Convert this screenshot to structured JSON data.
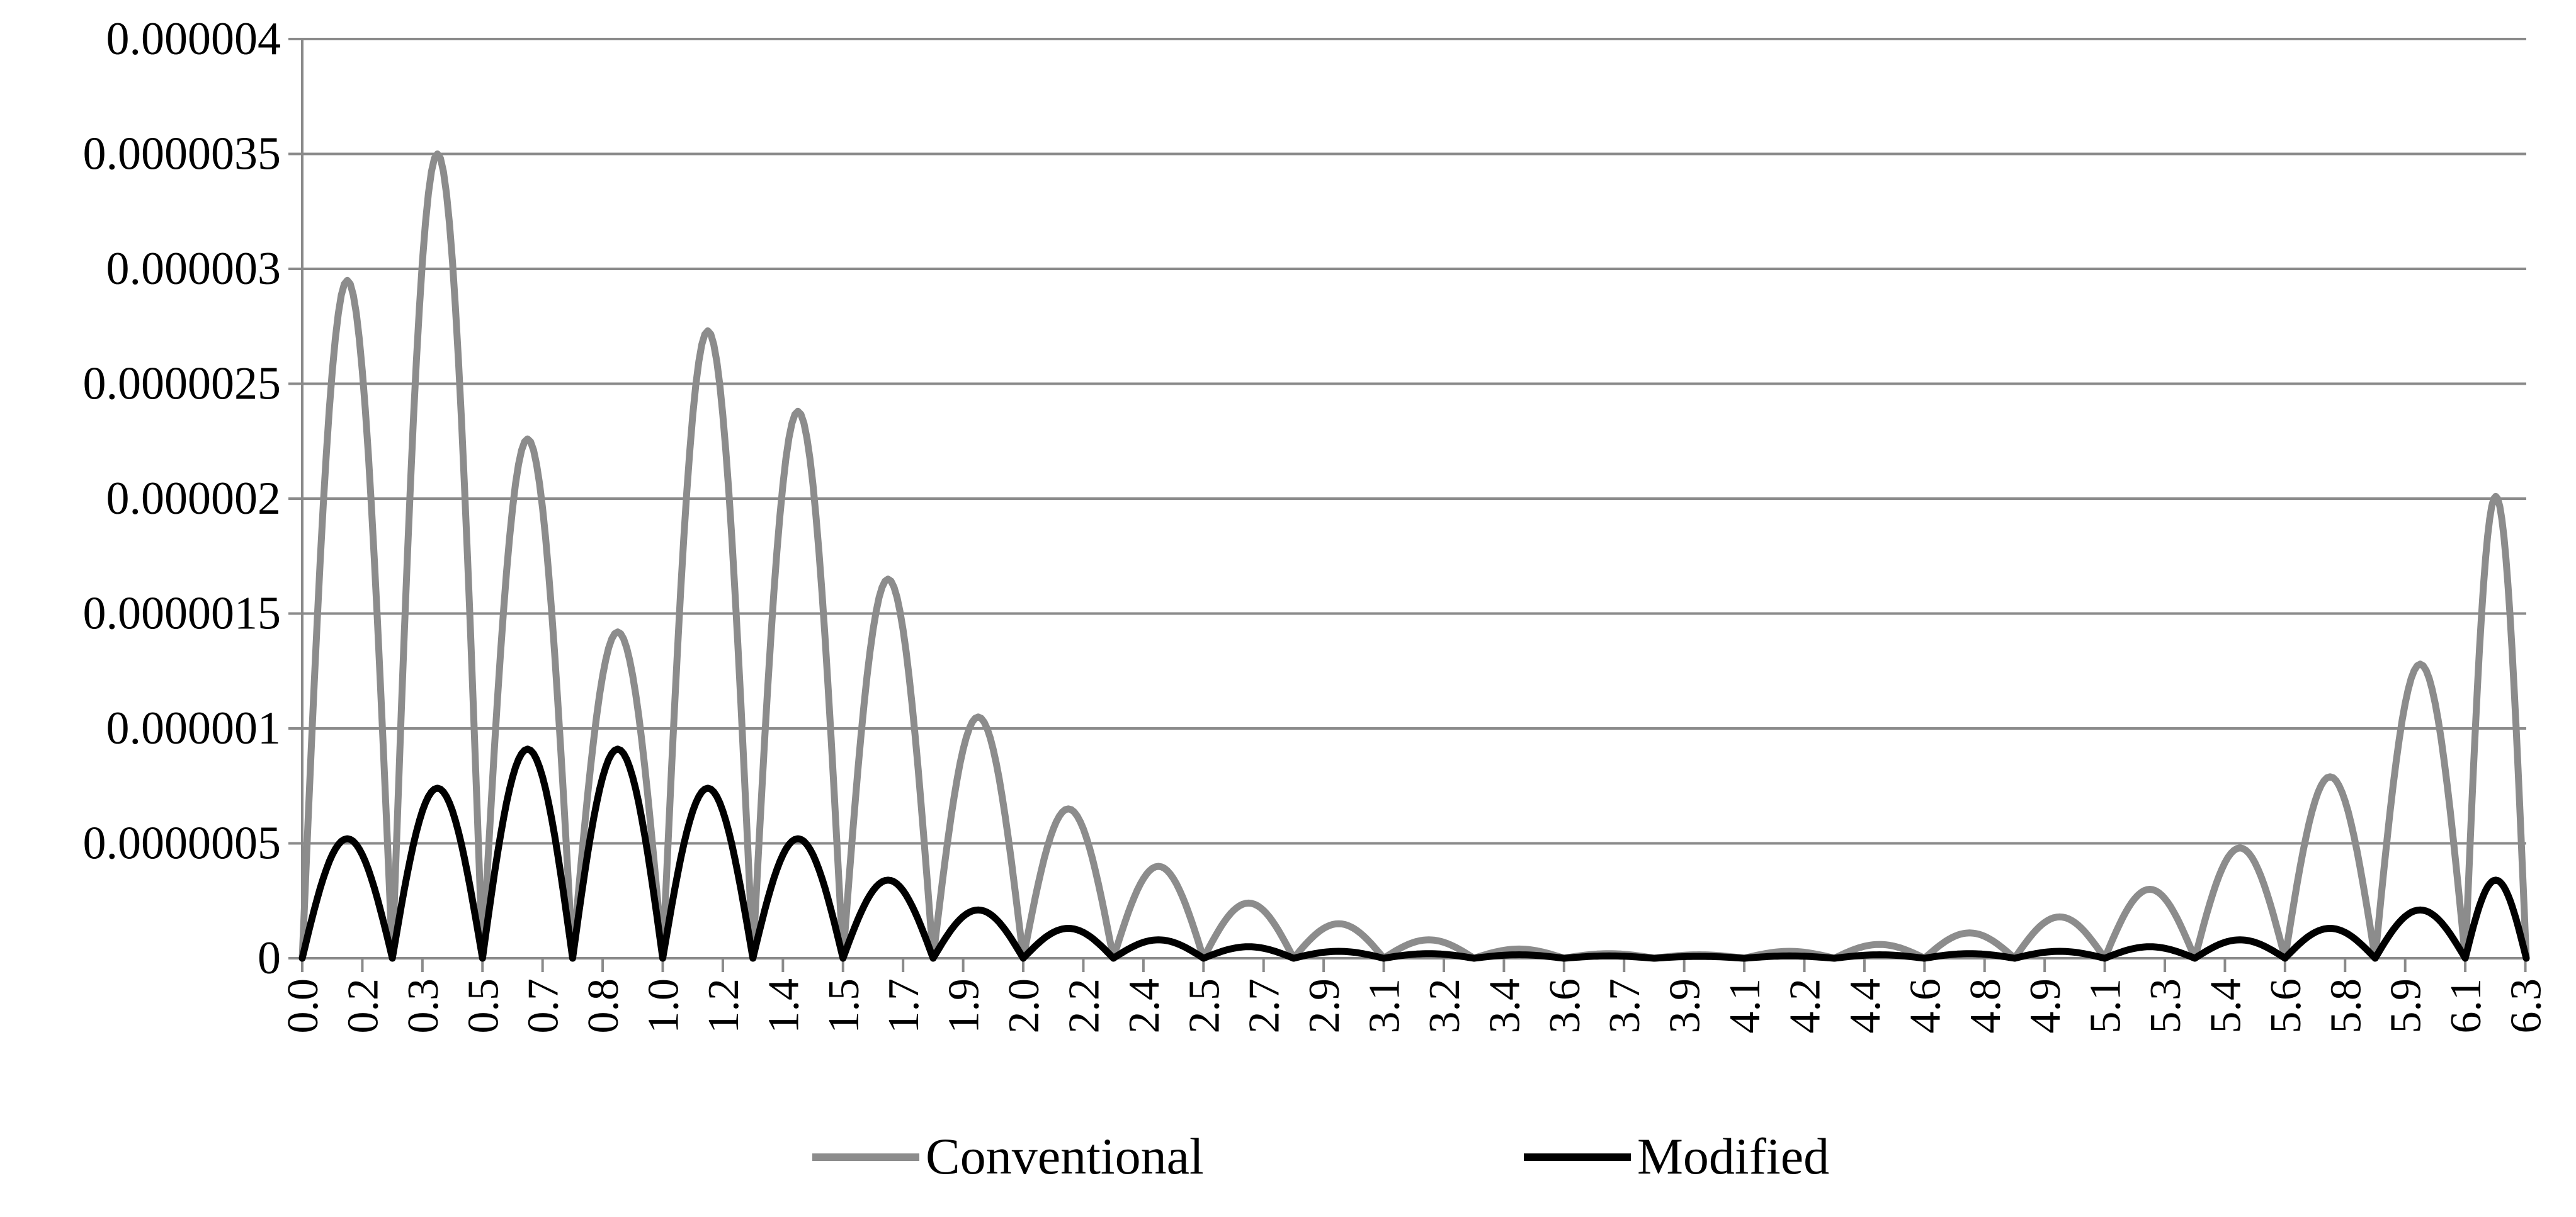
{
  "chart_data": {
    "type": "line",
    "title": "",
    "xlabel": "",
    "ylabel": "",
    "ylim": [
      0,
      4e-06
    ],
    "xlim": [
      0,
      6.3
    ],
    "grid": true,
    "legend_position": "bottom",
    "y_tick_labels": [
      "0",
      "0.0000005",
      "0.000001",
      "0.0000015",
      "0.000002",
      "0.0000025",
      "0.000003",
      "0.0000035",
      "0.000004"
    ],
    "x_tick_labels": [
      "0.0",
      "0.2",
      "0.3",
      "0.5",
      "0.7",
      "0.8",
      "1.0",
      "1.2",
      "1.4",
      "1.5",
      "1.7",
      "1.9",
      "2.0",
      "2.2",
      "2.4",
      "2.5",
      "2.7",
      "2.9",
      "3.1",
      "3.2",
      "3.4",
      "3.6",
      "3.7",
      "3.9",
      "4.1",
      "4.2",
      "4.4",
      "4.6",
      "4.8",
      "4.9",
      "5.1",
      "5.3",
      "5.4",
      "5.6",
      "5.8",
      "5.9",
      "6.1",
      "6.3"
    ],
    "x_label_step": 0.1702,
    "lobe_edges": [
      0,
      0.2553,
      0.5106,
      0.7659,
      1.0212,
      1.2765,
      1.5318,
      1.7871,
      2.0424,
      2.2977,
      2.553,
      2.8083,
      3.0636,
      3.3189,
      3.5742,
      3.8295,
      4.0848,
      4.3401,
      4.5954,
      4.8507,
      5.106,
      5.3613,
      5.6166,
      5.8719,
      6.1272,
      6.3
    ],
    "series": [
      {
        "name": "Conventional",
        "color": "#8c8c8c",
        "peaks": [
          2.95e-06,
          3.5e-06,
          2.26e-06,
          1.42e-06,
          2.73e-06,
          2.38e-06,
          1.65e-06,
          1.05e-06,
          6.5e-07,
          4e-07,
          2.4e-07,
          1.5e-07,
          8e-08,
          4e-08,
          2e-08,
          1.5e-08,
          3e-08,
          6e-08,
          1.1e-07,
          1.8e-07,
          3e-07,
          4.8e-07,
          7.9e-07,
          1.28e-06,
          2.01e-06
        ]
      },
      {
        "name": "Modified",
        "color": "#000000",
        "peaks": [
          5.2e-07,
          7.4e-07,
          9.1e-07,
          9.1e-07,
          7.4e-07,
          5.2e-07,
          3.4e-07,
          2.1e-07,
          1.3e-07,
          8e-08,
          5e-08,
          3e-08,
          2e-08,
          1.5e-08,
          1e-08,
          8e-09,
          1e-08,
          1.5e-08,
          2e-08,
          3e-08,
          5e-08,
          8e-08,
          1.3e-07,
          2.1e-07,
          3.4e-07
        ]
      }
    ]
  }
}
